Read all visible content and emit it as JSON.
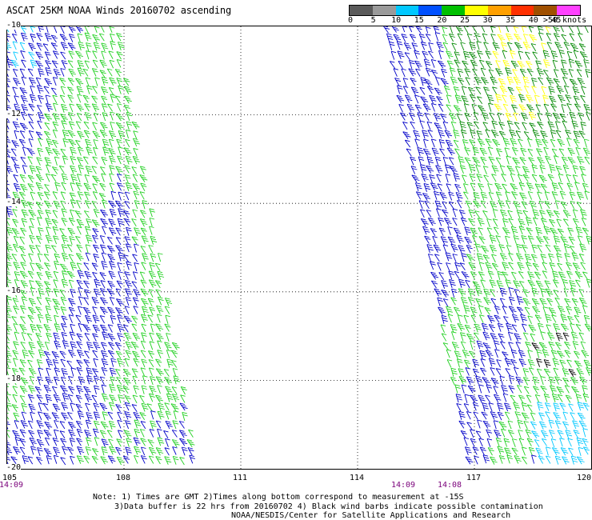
{
  "title": "ASCAT 25KM NOAA Winds 20160702 ascending",
  "colorbar": {
    "labels": [
      "0",
      "5",
      "10",
      "15",
      "20",
      "25",
      "30",
      "35",
      "40",
      "45",
      ">50 knots"
    ],
    "colors": [
      "#5a5a5a",
      "#9a9a9a",
      "#00c8ff",
      "#0050ff",
      "#00c000",
      "#ffff00",
      "#ffa000",
      "#ff3000",
      "#a05000",
      "#ff40ff",
      "#5a0080"
    ]
  },
  "map": {
    "lat_labels": [
      "-10",
      "-12",
      "-14",
      "-16",
      "-18",
      "-20"
    ],
    "lon_labels": [
      "105",
      "108",
      "111",
      "114",
      "117",
      "120"
    ],
    "swaths": [
      {
        "name": "west-swath",
        "time": "14:09"
      },
      {
        "name": "east-swath",
        "time_start": "14:09",
        "time_end": "14:08"
      }
    ],
    "barb_colors": {
      "blue": "#0000c8",
      "green": "#20d020",
      "darkgreen": "#008800",
      "yellow": "#ffff00",
      "cyan": "#00c8ff",
      "black": "#000000"
    }
  },
  "notes": {
    "line1": "Note: 1) Times are GMT 2)Times along bottom correspond to measurement at -15S",
    "line2": "3)Data buffer is 22 hrs from 20160702 4) Black wind barbs indicate possible contamination",
    "line3": "NOAA/NESDIS/Center for Satellite Applications and Research"
  }
}
